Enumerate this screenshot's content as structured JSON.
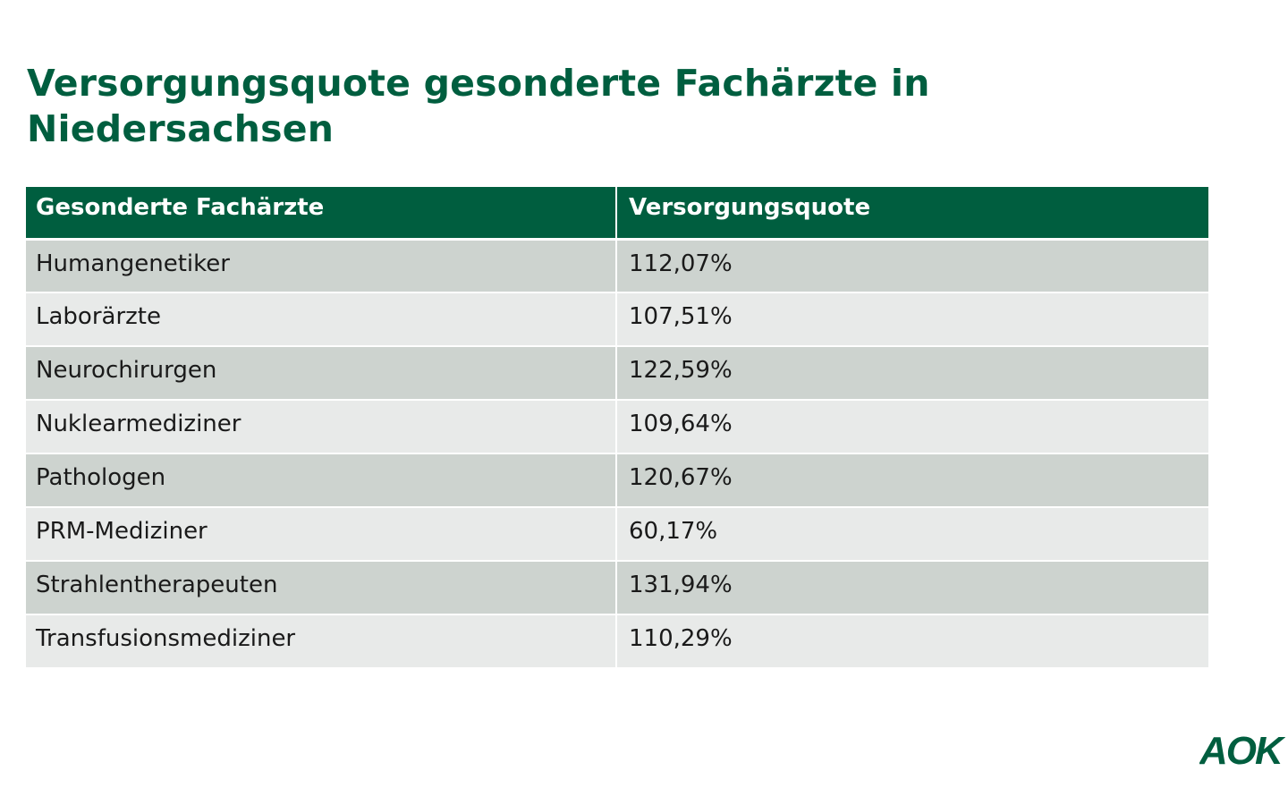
{
  "title": "Versorgungsquote gesonderte Fachärzte in Niedersachsen",
  "table": {
    "headers": [
      "Gesonderte Fachärzte",
      "Versorgungsquote"
    ],
    "rows": [
      [
        "Humangenetiker",
        "112,07%"
      ],
      [
        "Laborärzte",
        "107,51%"
      ],
      [
        "Neurochirurgen",
        "122,59%"
      ],
      [
        "Nuklearmediziner",
        "109,64%"
      ],
      [
        "Pathologen",
        "120,67%"
      ],
      [
        "PRM-Mediziner",
        "60,17%"
      ],
      [
        "Strahlentherapeuten",
        "131,94%"
      ],
      [
        "Transfusionsmediziner",
        "110,29%"
      ]
    ]
  },
  "logo": {
    "text": "AOK",
    "color": "#005e3f"
  },
  "colors": {
    "brand_green": "#005e3f",
    "row_dark": "#cdd3cf",
    "row_light": "#e8eae9"
  }
}
